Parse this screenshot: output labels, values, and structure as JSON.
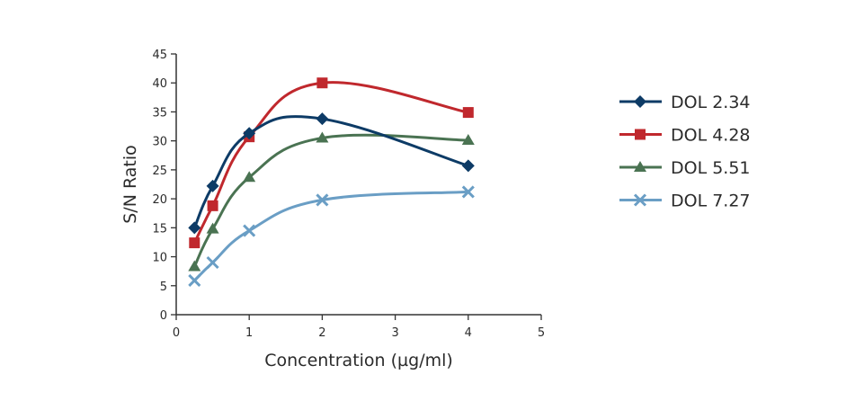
{
  "chart_data": {
    "type": "line",
    "title": "",
    "xlabel": "Concentration (µg/ml)",
    "ylabel": "S/N Ratio",
    "xlim": [
      0,
      5
    ],
    "ylim": [
      0,
      45
    ],
    "xticks": [
      0,
      1,
      2,
      3,
      4,
      5
    ],
    "yticks": [
      0,
      5,
      10,
      15,
      20,
      25,
      30,
      35,
      40,
      45
    ],
    "grid": false,
    "smooth": true,
    "legend_position": "right",
    "x": [
      0.25,
      0.5,
      1,
      2,
      4
    ],
    "series": [
      {
        "name": "DOL 2.34",
        "marker": "diamond",
        "color": "#0d3b66",
        "values": [
          15.0,
          22.2,
          31.3,
          33.8,
          25.7
        ]
      },
      {
        "name": "DOL 4.28",
        "marker": "square",
        "color": "#c0282d",
        "values": [
          12.4,
          18.8,
          30.7,
          40.0,
          34.9
        ]
      },
      {
        "name": "DOL 5.51",
        "marker": "triangle",
        "color": "#4a7352",
        "values": [
          8.3,
          14.8,
          23.7,
          30.5,
          30.1
        ]
      },
      {
        "name": "DOL 7.27",
        "marker": "x",
        "color": "#6a9ec5",
        "values": [
          5.9,
          9.0,
          14.5,
          19.8,
          21.2
        ]
      }
    ]
  }
}
